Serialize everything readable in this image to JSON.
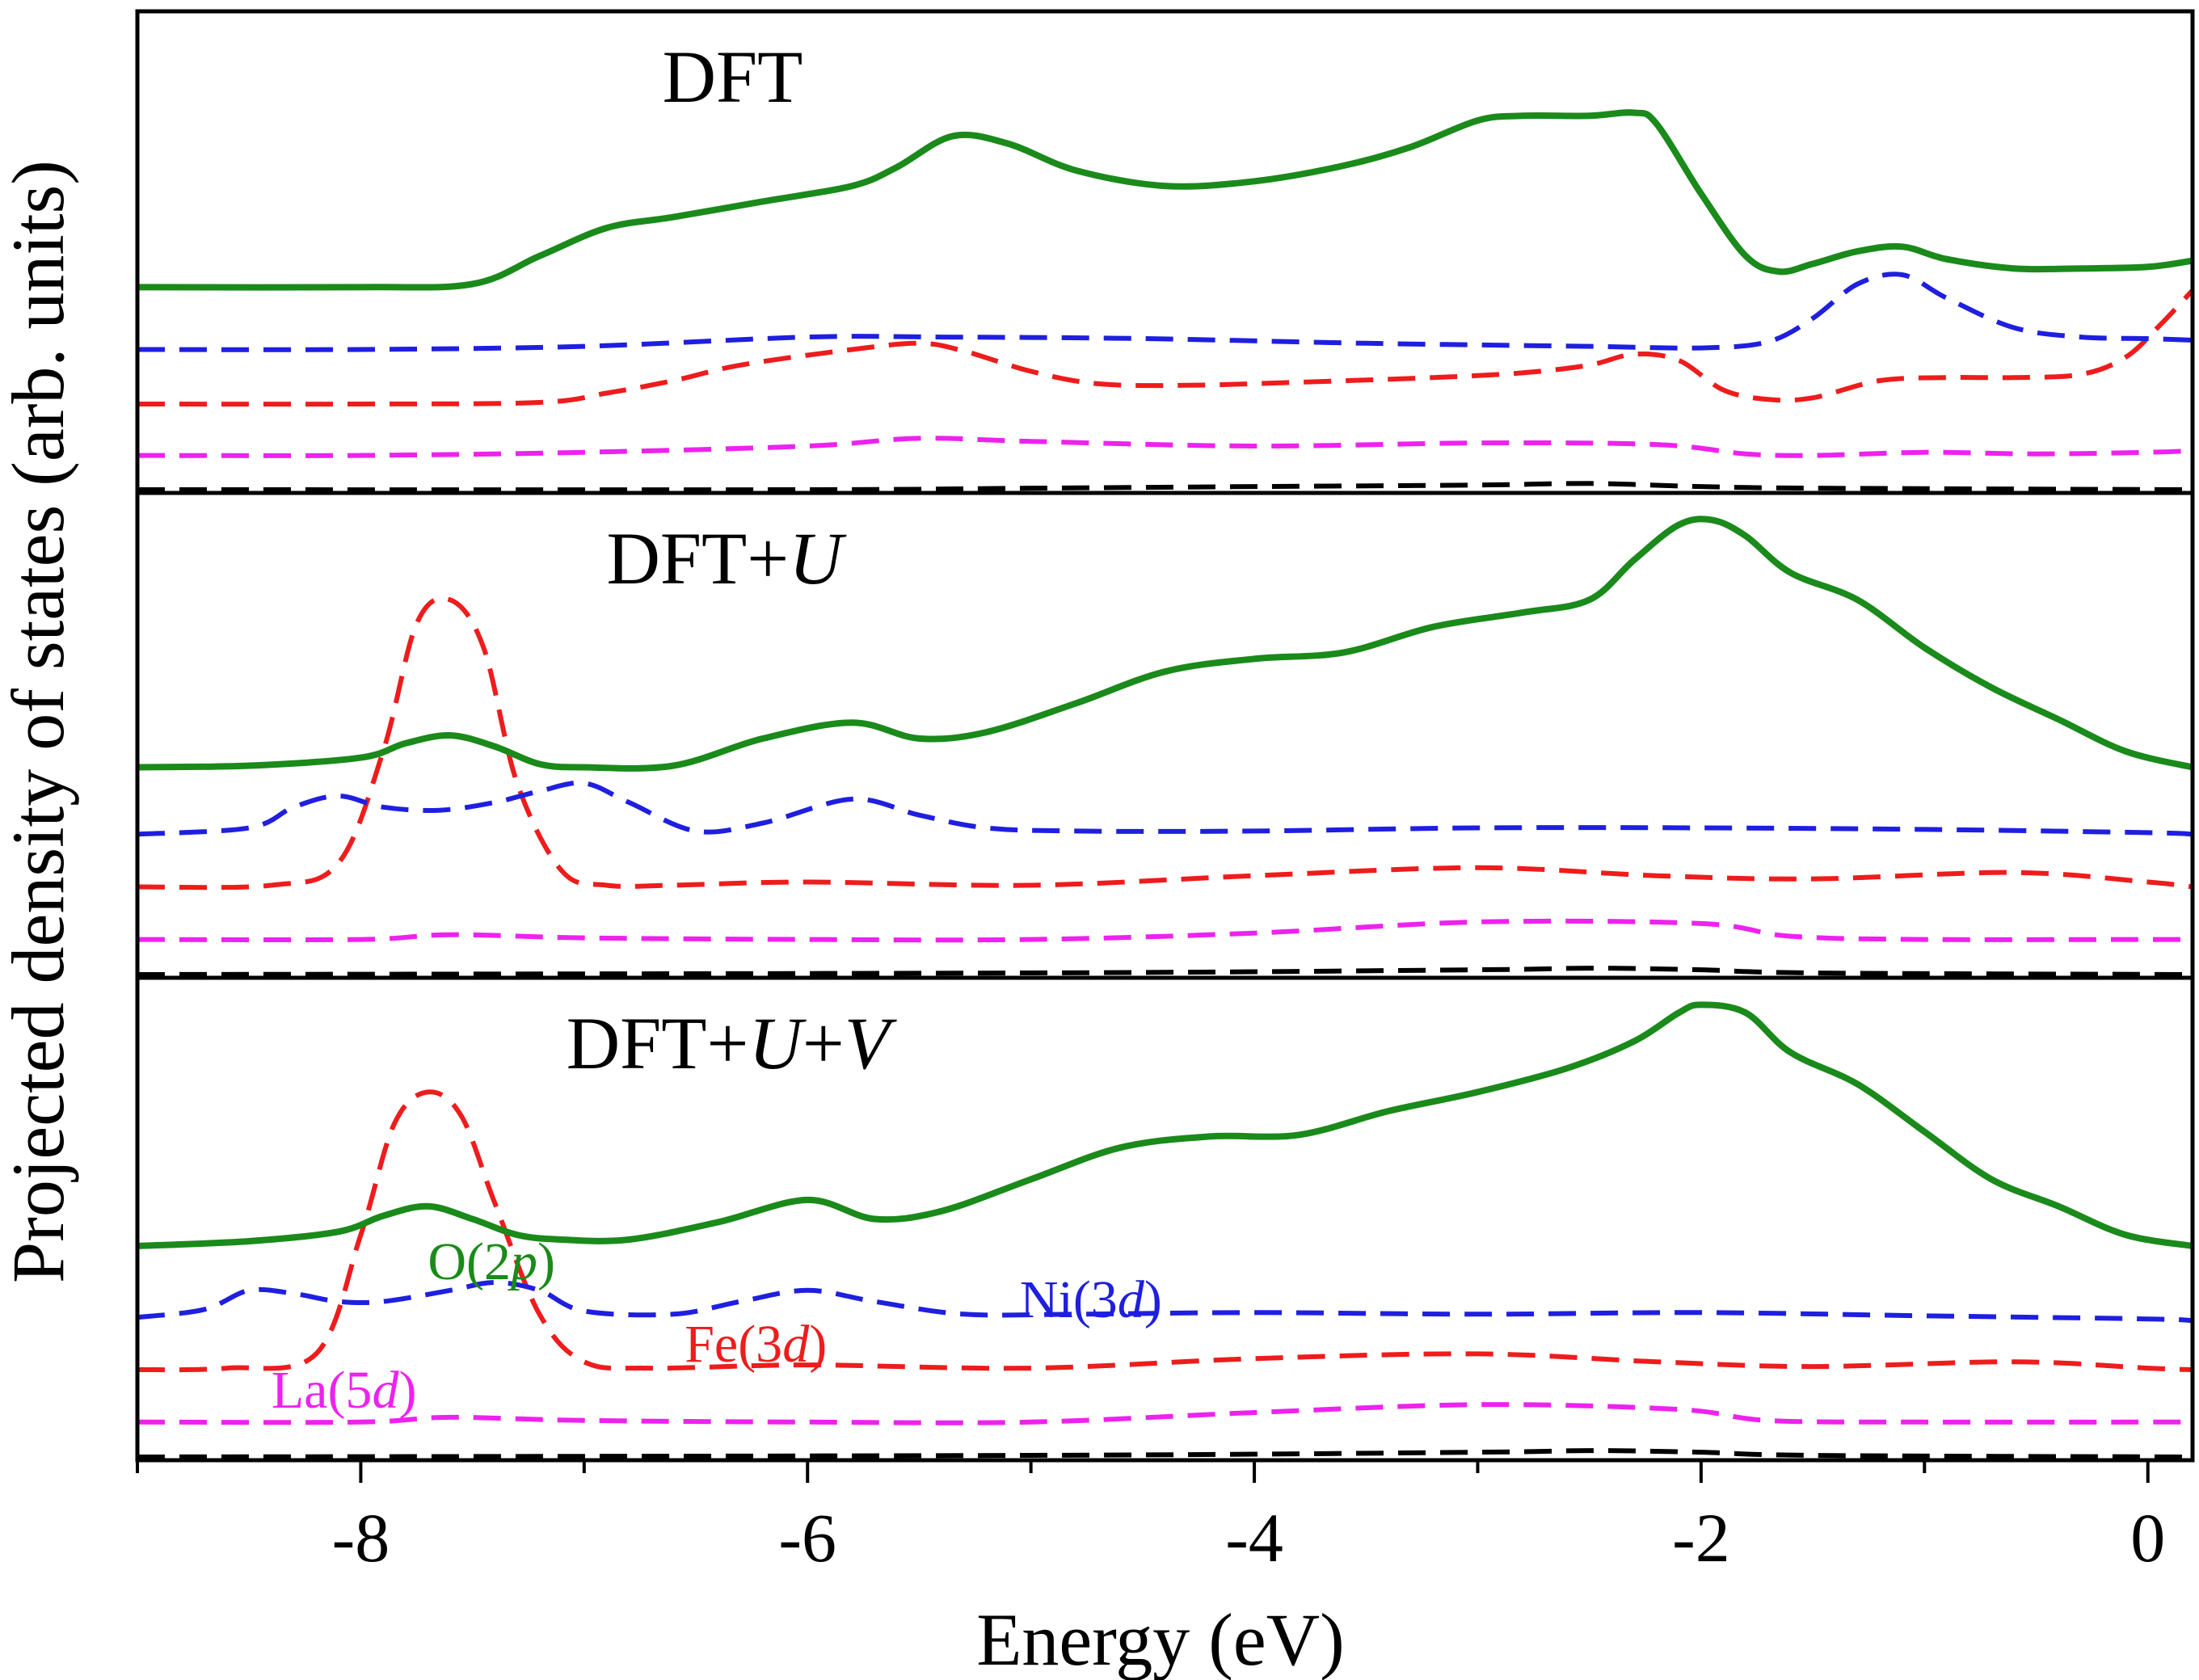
{
  "chart_data": {
    "type": "line",
    "xlabel": "Energy (eV)",
    "ylabel": "Projected density of states (arb. units)",
    "xlim": [
      -9,
      0.2
    ],
    "xticks": [
      {
        "value": -8,
        "label": "-8"
      },
      {
        "value": -6,
        "label": "-6"
      },
      {
        "value": -4,
        "label": "-4"
      },
      {
        "value": -2,
        "label": "-2"
      },
      {
        "value": 0,
        "label": "0"
      }
    ],
    "xminor_ticks": [
      -9,
      -7,
      -5,
      -3,
      -1
    ],
    "series_styles": [
      {
        "key": "O",
        "color": "#1a8a1a",
        "dash": "solid"
      },
      {
        "key": "Ni",
        "color": "#1f1fe0",
        "dash": "dashed"
      },
      {
        "key": "Fe",
        "color": "#ee1c1c",
        "dash": "dashed"
      },
      {
        "key": "La",
        "color": "#ee22ee",
        "dash": "dashed"
      },
      {
        "key": "other",
        "color": "#000000",
        "dash": "dashed"
      }
    ],
    "legend_labels": [
      {
        "key": "O",
        "base": "O(2",
        "italic": "p",
        "close": ")",
        "at_x": -7.7,
        "at_y": 1.12
      },
      {
        "key": "Ni",
        "base": "Ni(3",
        "italic": "d",
        "close": ")",
        "at_x": -5.05,
        "at_y": 0.88
      },
      {
        "key": "Fe",
        "base": "Fe(3",
        "italic": "d",
        "close": ")",
        "at_x": -6.55,
        "at_y": 0.6
      },
      {
        "key": "La",
        "base": "La(5",
        "italic": "d",
        "close": ")",
        "at_x": -8.4,
        "at_y": 0.31
      }
    ],
    "panels": [
      {
        "title_parts": [
          {
            "text": "DFT",
            "italic": false
          }
        ],
        "title_at_x": -6.65,
        "ylim": [
          0,
          3.05
        ],
        "series": [
          {
            "key": "O",
            "x": [
              -9,
              -8,
              -7.5,
              -7.2,
              -6.9,
              -6.6,
              -6.2,
              -5.8,
              -5.6,
              -5.35,
              -5.1,
              -4.8,
              -4.4,
              -4.0,
              -3.6,
              -3.3,
              -3.0,
              -2.8,
              -2.5,
              -2.3,
              -2.2,
              -2.0,
              -1.8,
              -1.65,
              -1.5,
              -1.3,
              -1.1,
              -0.9,
              -0.6,
              -0.3,
              0,
              0.2
            ],
            "y": [
              1.3,
              1.3,
              1.32,
              1.5,
              1.68,
              1.75,
              1.85,
              1.95,
              2.07,
              2.27,
              2.22,
              2.05,
              1.95,
              1.98,
              2.08,
              2.2,
              2.37,
              2.4,
              2.4,
              2.42,
              2.35,
              1.9,
              1.5,
              1.4,
              1.45,
              1.53,
              1.56,
              1.48,
              1.42,
              1.42,
              1.43,
              1.47
            ]
          },
          {
            "key": "Ni",
            "x": [
              -9,
              -8,
              -7,
              -6,
              -5.4,
              -4.5,
              -3.5,
              -2.5,
              -2,
              -1.7,
              -1.5,
              -1.3,
              -1.1,
              -0.9,
              -0.6,
              -0.3,
              0,
              0.2
            ],
            "y": [
              0.9,
              0.9,
              0.92,
              0.98,
              0.98,
              0.97,
              0.94,
              0.92,
              0.91,
              0.95,
              1.1,
              1.32,
              1.38,
              1.23,
              1.04,
              0.98,
              0.97,
              0.96
            ]
          },
          {
            "key": "Fe",
            "x": [
              -9,
              -8,
              -7.2,
              -6.9,
              -6.6,
              -6.3,
              -5.8,
              -5.5,
              -5.3,
              -5.0,
              -4.7,
              -4.3,
              -3.8,
              -3.2,
              -2.8,
              -2.5,
              -2.3,
              -2.1,
              -1.9,
              -1.7,
              -1.5,
              -1.2,
              -0.9,
              -0.6,
              -0.3,
              -0.1,
              0.05,
              0.2
            ],
            "y": [
              0.55,
              0.55,
              0.56,
              0.62,
              0.7,
              0.8,
              0.9,
              0.94,
              0.89,
              0.76,
              0.68,
              0.67,
              0.69,
              0.72,
              0.75,
              0.8,
              0.87,
              0.83,
              0.64,
              0.58,
              0.59,
              0.7,
              0.72,
              0.72,
              0.74,
              0.85,
              1.05,
              1.28
            ]
          },
          {
            "key": "La",
            "x": [
              -9,
              -8,
              -7,
              -6,
              -5.5,
              -5,
              -4,
              -3,
              -2.2,
              -1.8,
              -1.5,
              -1,
              -0.5,
              0,
              0.2
            ],
            "y": [
              0.22,
              0.22,
              0.24,
              0.28,
              0.33,
              0.31,
              0.28,
              0.3,
              0.29,
              0.23,
              0.22,
              0.24,
              0.23,
              0.24,
              0.25
            ]
          },
          {
            "key": "other",
            "x": [
              -9,
              -6,
              -5,
              -4,
              -3,
              -2.5,
              -2,
              -1.5,
              0.2
            ],
            "y": [
              0.0,
              0.0,
              0.01,
              0.02,
              0.03,
              0.04,
              0.02,
              0.01,
              0.0
            ]
          }
        ]
      },
      {
        "title_parts": [
          {
            "text": "DFT+",
            "italic": false
          },
          {
            "text": "U",
            "italic": true
          }
        ],
        "title_at_x": -6.9,
        "ylim": [
          0,
          3.0
        ],
        "series": [
          {
            "key": "O",
            "x": [
              -9,
              -8.5,
              -8.0,
              -7.8,
              -7.6,
              -7.4,
              -7.2,
              -7.0,
              -6.6,
              -6.2,
              -5.8,
              -5.5,
              -5.2,
              -4.8,
              -4.4,
              -4.0,
              -3.6,
              -3.2,
              -2.8,
              -2.5,
              -2.3,
              -2.1,
              -1.95,
              -1.8,
              -1.6,
              -1.3,
              -1.0,
              -0.7,
              -0.4,
              -0.1,
              0.2
            ],
            "y": [
              1.3,
              1.31,
              1.36,
              1.45,
              1.5,
              1.43,
              1.32,
              1.3,
              1.31,
              1.48,
              1.58,
              1.48,
              1.52,
              1.7,
              1.9,
              1.98,
              2.02,
              2.18,
              2.27,
              2.35,
              2.6,
              2.82,
              2.85,
              2.75,
              2.52,
              2.35,
              2.05,
              1.8,
              1.6,
              1.4,
              1.3
            ]
          },
          {
            "key": "Ni",
            "x": [
              -9,
              -8.5,
              -8.3,
              -8.1,
              -7.9,
              -7.65,
              -7.4,
              -7.2,
              -7.0,
              -6.8,
              -6.5,
              -6.2,
              -5.8,
              -5.5,
              -5.2,
              -4.8,
              -4.0,
              -3.0,
              -2.0,
              -1.0,
              0,
              0.2
            ],
            "y": [
              0.88,
              0.92,
              1.05,
              1.12,
              1.05,
              1.03,
              1.08,
              1.15,
              1.2,
              1.08,
              0.9,
              0.95,
              1.1,
              1.0,
              0.92,
              0.9,
              0.9,
              0.92,
              0.92,
              0.91,
              0.89,
              0.88
            ]
          },
          {
            "key": "Fe",
            "x": [
              -9,
              -8.4,
              -8.1,
              -7.9,
              -7.75,
              -7.6,
              -7.45,
              -7.3,
              -7.1,
              -6.9,
              -6.6,
              -6.0,
              -5.0,
              -4.0,
              -3.0,
              -2.2,
              -1.5,
              -0.6,
              0,
              0.2
            ],
            "y": [
              0.55,
              0.56,
              0.7,
              1.4,
              2.2,
              2.35,
              2.05,
              1.2,
              0.65,
              0.56,
              0.56,
              0.58,
              0.56,
              0.62,
              0.67,
              0.62,
              0.6,
              0.64,
              0.58,
              0.55
            ]
          },
          {
            "key": "La",
            "x": [
              -9,
              -8,
              -7.6,
              -7,
              -6,
              -5,
              -4,
              -3,
              -2,
              -1.6,
              -1,
              0,
              0.2
            ],
            "y": [
              0.22,
              0.22,
              0.25,
              0.23,
              0.22,
              0.22,
              0.26,
              0.33,
              0.32,
              0.24,
              0.22,
              0.22,
              0.22
            ]
          },
          {
            "key": "other",
            "x": [
              -9,
              -5,
              -3,
              -2.5,
              -2,
              -1.5,
              0.2
            ],
            "y": [
              0.0,
              0.01,
              0.03,
              0.04,
              0.03,
              0.01,
              0.0
            ]
          }
        ]
      },
      {
        "title_parts": [
          {
            "text": "DFT+",
            "italic": false
          },
          {
            "text": "U",
            "italic": true
          },
          {
            "text": "+",
            "italic": false
          },
          {
            "text": "V",
            "italic": true
          }
        ],
        "title_at_x": -7.08,
        "ylim": [
          0,
          3.0
        ],
        "series": [
          {
            "key": "O",
            "x": [
              -9,
              -8.5,
              -8.1,
              -7.9,
              -7.7,
              -7.5,
              -7.3,
              -7.1,
              -6.8,
              -6.4,
              -6.0,
              -5.7,
              -5.4,
              -5.0,
              -4.6,
              -4.2,
              -3.8,
              -3.4,
              -3.0,
              -2.6,
              -2.3,
              -2.1,
              -2.0,
              -1.8,
              -1.6,
              -1.3,
              -1.0,
              -0.7,
              -0.4,
              -0.1,
              0.2
            ],
            "y": [
              1.33,
              1.36,
              1.42,
              1.52,
              1.58,
              1.5,
              1.4,
              1.37,
              1.37,
              1.48,
              1.62,
              1.5,
              1.55,
              1.75,
              1.95,
              2.02,
              2.03,
              2.18,
              2.3,
              2.45,
              2.62,
              2.8,
              2.85,
              2.8,
              2.55,
              2.35,
              2.05,
              1.75,
              1.58,
              1.4,
              1.33
            ]
          },
          {
            "key": "Ni",
            "x": [
              -9,
              -8.7,
              -8.5,
              -8.3,
              -8.1,
              -7.9,
              -7.6,
              -7.4,
              -7.2,
              -7.0,
              -6.6,
              -6.3,
              -6.0,
              -5.7,
              -5.3,
              -4.8,
              -4.0,
              -3.0,
              -2.0,
              -1.0,
              0,
              0.2
            ],
            "y": [
              0.88,
              0.93,
              1.05,
              1.03,
              0.98,
              0.98,
              1.05,
              1.1,
              1.05,
              0.92,
              0.9,
              0.98,
              1.05,
              0.98,
              0.9,
              0.9,
              0.91,
              0.9,
              0.91,
              0.89,
              0.87,
              0.86
            ]
          },
          {
            "key": "Fe",
            "x": [
              -9,
              -8.6,
              -8.2,
              -8.0,
              -7.85,
              -7.7,
              -7.55,
              -7.4,
              -7.2,
              -7.0,
              -6.7,
              -6.0,
              -5.0,
              -4.0,
              -3.0,
              -2.2,
              -1.5,
              -0.6,
              0,
              0.2
            ],
            "y": [
              0.55,
              0.56,
              0.65,
              1.4,
              2.1,
              2.3,
              2.15,
              1.6,
              0.9,
              0.6,
              0.56,
              0.58,
              0.56,
              0.62,
              0.65,
              0.6,
              0.57,
              0.6,
              0.56,
              0.55
            ]
          },
          {
            "key": "La",
            "x": [
              -9,
              -8,
              -7.6,
              -7,
              -6,
              -5,
              -4,
              -3,
              -2.1,
              -1.7,
              -1,
              0,
              0.2
            ],
            "y": [
              0.22,
              0.22,
              0.25,
              0.23,
              0.22,
              0.22,
              0.28,
              0.33,
              0.3,
              0.23,
              0.22,
              0.22,
              0.22
            ]
          },
          {
            "key": "other",
            "x": [
              -9,
              -5,
              -3,
              -2.5,
              -2,
              -1.5,
              0.2
            ],
            "y": [
              0.0,
              0.01,
              0.03,
              0.04,
              0.03,
              0.01,
              0.0
            ]
          }
        ]
      }
    ]
  }
}
